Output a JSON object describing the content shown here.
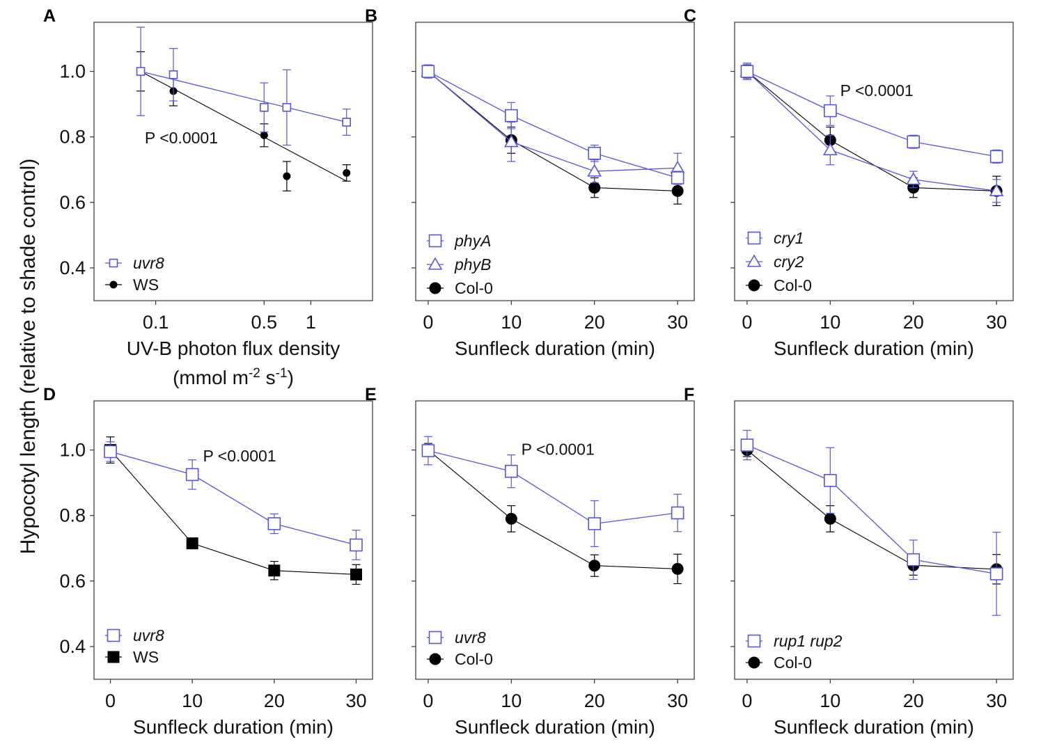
{
  "figure": {
    "y_axis_label": "Hypocotyl length (relative to shade control)"
  },
  "colors": {
    "mutant": "#5555dd",
    "wildtype": "#000000",
    "frame": "#333333"
  },
  "chart_data": [
    {
      "id": "A",
      "letter": "A",
      "type": "line",
      "x_scale": "log",
      "xlim": [
        0.04,
        2.5
      ],
      "ylim": [
        0.3,
        1.15
      ],
      "x_ticks": [
        0.1,
        0.5,
        1
      ],
      "x_tick_labels": [
        "0.1",
        "0.5",
        "1"
      ],
      "y_ticks": [
        0.4,
        0.6,
        0.8,
        1.0
      ],
      "y_tick_labels": [
        "0.4",
        "0.6",
        "0.8",
        "1.0"
      ],
      "show_y_tick_labels": true,
      "xlabel": "UV-B photon flux density",
      "xlabel2": "(mmol m",
      "xlabel2_sup1": "-2",
      "xlabel2_mid": " s",
      "xlabel2_sup2": "-1",
      "xlabel2_end": ")",
      "annotation": {
        "text": "P <0.0001",
        "x": 0.085,
        "y": 0.78
      },
      "series": [
        {
          "name": "uvr8",
          "italic": true,
          "marker": "square",
          "marker_size": "small",
          "color": "#5555dd",
          "points": [
            {
              "x": 0.08,
              "y": 1.0,
              "err": 0.135
            },
            {
              "x": 0.13,
              "y": 0.99,
              "err": 0.08
            },
            {
              "x": 0.5,
              "y": 0.89,
              "err": 0.075
            },
            {
              "x": 0.7,
              "y": 0.89,
              "err": 0.115
            },
            {
              "x": 1.7,
              "y": 0.845,
              "err": 0.04
            }
          ],
          "fit": [
            [
              0.08,
              1.0
            ],
            [
              1.7,
              0.845
            ]
          ]
        },
        {
          "name": "WS",
          "italic": false,
          "marker": "circle",
          "marker_size": "small",
          "color": "#000000",
          "points": [
            {
              "x": 0.08,
              "y": 1.0,
              "err": 0.06
            },
            {
              "x": 0.13,
              "y": 0.94,
              "err": 0.045
            },
            {
              "x": 0.5,
              "y": 0.805,
              "err": 0.035
            },
            {
              "x": 0.7,
              "y": 0.68,
              "err": 0.045
            },
            {
              "x": 1.7,
              "y": 0.69,
              "err": 0.025
            }
          ],
          "fit": [
            [
              0.08,
              1.0
            ],
            [
              1.7,
              0.665
            ]
          ]
        }
      ],
      "legend_top": 378
    },
    {
      "id": "B",
      "letter": "B",
      "type": "line",
      "x_scale": "linear",
      "xlim": [
        -1.5,
        32
      ],
      "ylim": [
        0.3,
        1.15
      ],
      "x_ticks": [
        0,
        10,
        20,
        30
      ],
      "x_tick_labels": [
        "0",
        "10",
        "20",
        "30"
      ],
      "y_ticks": [
        0.4,
        0.6,
        0.8,
        1.0
      ],
      "y_tick_labels": [
        "0.4",
        "0.6",
        "0.8",
        "1.0"
      ],
      "show_y_tick_labels": false,
      "xlabel": "Sunfleck duration (min)",
      "series": [
        {
          "name": "phyA",
          "italic": true,
          "marker": "square",
          "marker_size": "large",
          "color": "#5555dd",
          "points": [
            {
              "x": 0,
              "y": 1.0,
              "err": 0.02
            },
            {
              "x": 10,
              "y": 0.865,
              "err": 0.04
            },
            {
              "x": 20,
              "y": 0.75,
              "err": 0.025
            },
            {
              "x": 30,
              "y": 0.675,
              "err": 0.02
            }
          ]
        },
        {
          "name": "phyB",
          "italic": true,
          "marker": "triangle",
          "marker_size": "large",
          "color": "#5555dd",
          "points": [
            {
              "x": 0,
              "y": 1.0,
              "err": 0.02
            },
            {
              "x": 10,
              "y": 0.785,
              "err": 0.06
            },
            {
              "x": 20,
              "y": 0.695,
              "err": 0.035
            },
            {
              "x": 30,
              "y": 0.705,
              "err": 0.045
            }
          ]
        },
        {
          "name": "Col-0",
          "italic": false,
          "marker": "circle",
          "marker_size": "large",
          "color": "#000000",
          "points": [
            {
              "x": 0,
              "y": 1.0,
              "err": 0.02
            },
            {
              "x": 10,
              "y": 0.79,
              "err": 0.04
            },
            {
              "x": 20,
              "y": 0.645,
              "err": 0.03
            },
            {
              "x": 30,
              "y": 0.635,
              "err": 0.04
            }
          ]
        }
      ],
      "legend_top": 346
    },
    {
      "id": "C",
      "letter": "C",
      "type": "line",
      "x_scale": "linear",
      "xlim": [
        -1.5,
        32
      ],
      "ylim": [
        0.3,
        1.15
      ],
      "x_ticks": [
        0,
        10,
        20,
        30
      ],
      "x_tick_labels": [
        "0",
        "10",
        "20",
        "30"
      ],
      "y_ticks": [
        0.4,
        0.6,
        0.8,
        1.0
      ],
      "y_tick_labels": [
        "0.4",
        "0.6",
        "0.8",
        "1.0"
      ],
      "show_y_tick_labels": false,
      "xlabel": "Sunfleck duration (min)",
      "annotation": {
        "text": "P <0.0001",
        "x": 11.2,
        "y": 0.925
      },
      "series": [
        {
          "name": "cry1",
          "italic": true,
          "marker": "square",
          "marker_size": "large",
          "color": "#5555dd",
          "points": [
            {
              "x": 0,
              "y": 1.0,
              "err": 0.025
            },
            {
              "x": 10,
              "y": 0.88,
              "err": 0.045
            },
            {
              "x": 20,
              "y": 0.785,
              "err": 0.02
            },
            {
              "x": 30,
              "y": 0.74,
              "err": 0.02
            }
          ]
        },
        {
          "name": "cry2",
          "italic": true,
          "marker": "triangle",
          "marker_size": "large",
          "color": "#5555dd",
          "points": [
            {
              "x": 0,
              "y": 1.0,
              "err": 0.025
            },
            {
              "x": 10,
              "y": 0.76,
              "err": 0.045
            },
            {
              "x": 20,
              "y": 0.67,
              "err": 0.025
            },
            {
              "x": 30,
              "y": 0.635,
              "err": 0.035
            }
          ]
        },
        {
          "name": "Col-0",
          "italic": false,
          "marker": "circle",
          "marker_size": "large",
          "color": "#000000",
          "points": [
            {
              "x": 0,
              "y": 1.0,
              "err": 0.02
            },
            {
              "x": 10,
              "y": 0.79,
              "err": 0.04
            },
            {
              "x": 20,
              "y": 0.645,
              "err": 0.03
            },
            {
              "x": 30,
              "y": 0.635,
              "err": 0.045
            }
          ]
        }
      ],
      "legend_top": 342
    },
    {
      "id": "D",
      "letter": "D",
      "type": "line",
      "x_scale": "linear",
      "xlim": [
        -2,
        32
      ],
      "ylim": [
        0.3,
        1.15
      ],
      "x_ticks": [
        0,
        10,
        20,
        30
      ],
      "x_tick_labels": [
        "0",
        "10",
        "20",
        "30"
      ],
      "y_ticks": [
        0.4,
        0.6,
        0.8,
        1.0
      ],
      "y_tick_labels": [
        "0.4",
        "0.6",
        "0.8",
        "1.0"
      ],
      "show_y_tick_labels": true,
      "xlabel": "Sunfleck duration (min)",
      "annotation": {
        "text": "P <0.0001",
        "x": 11.3,
        "y": 0.965
      },
      "series": [
        {
          "name": "uvr8",
          "italic": true,
          "marker": "square",
          "marker_size": "large",
          "color": "#5555dd",
          "points": [
            {
              "x": 0,
              "y": 0.995,
              "err": 0.03
            },
            {
              "x": 10,
              "y": 0.925,
              "err": 0.045
            },
            {
              "x": 20,
              "y": 0.775,
              "err": 0.03
            },
            {
              "x": 30,
              "y": 0.71,
              "err": 0.045
            }
          ]
        },
        {
          "name": "WS",
          "italic": false,
          "marker": "filled-square",
          "marker_size": "large",
          "color": "#000000",
          "points": [
            {
              "x": 0,
              "y": 1.0,
              "err": 0.04
            },
            {
              "x": 10,
              "y": 0.715,
              "err": 0.01
            },
            {
              "x": 20,
              "y": 0.632,
              "err": 0.028
            },
            {
              "x": 30,
              "y": 0.62,
              "err": 0.03
            }
          ]
        }
      ],
      "legend_top": 913
    },
    {
      "id": "E",
      "letter": "E",
      "type": "line",
      "x_scale": "linear",
      "xlim": [
        -1.5,
        32
      ],
      "ylim": [
        0.3,
        1.15
      ],
      "x_ticks": [
        0,
        10,
        20,
        30
      ],
      "x_tick_labels": [
        "0",
        "10",
        "20",
        "30"
      ],
      "y_ticks": [
        0.4,
        0.6,
        0.8,
        1.0
      ],
      "y_tick_labels": [
        "0.4",
        "0.6",
        "0.8",
        "1.0"
      ],
      "show_y_tick_labels": false,
      "xlabel": "Sunfleck duration (min)",
      "annotation": {
        "text": "P <0.0001",
        "x": 11.2,
        "y": 0.985
      },
      "series": [
        {
          "name": "uvr8",
          "italic": true,
          "marker": "square",
          "marker_size": "large",
          "color": "#5555dd",
          "points": [
            {
              "x": 0,
              "y": 0.998,
              "err": 0.043
            },
            {
              "x": 10,
              "y": 0.935,
              "err": 0.05
            },
            {
              "x": 20,
              "y": 0.775,
              "err": 0.07
            },
            {
              "x": 30,
              "y": 0.808,
              "err": 0.057
            }
          ]
        },
        {
          "name": "Col-0",
          "italic": false,
          "marker": "circle",
          "marker_size": "large",
          "color": "#000000",
          "points": [
            {
              "x": 0,
              "y": 1.0,
              "err": 0.02
            },
            {
              "x": 10,
              "y": 0.79,
              "err": 0.04
            },
            {
              "x": 20,
              "y": 0.647,
              "err": 0.033
            },
            {
              "x": 30,
              "y": 0.637,
              "err": 0.045
            }
          ]
        }
      ],
      "legend_top": 916
    },
    {
      "id": "F",
      "letter": "F",
      "type": "line",
      "x_scale": "linear",
      "xlim": [
        -1.5,
        32
      ],
      "ylim": [
        0.3,
        1.15
      ],
      "x_ticks": [
        0,
        10,
        20,
        30
      ],
      "x_tick_labels": [
        "0",
        "10",
        "20",
        "30"
      ],
      "y_ticks": [
        0.4,
        0.6,
        0.8,
        1.0
      ],
      "y_tick_labels": [
        "0.4",
        "0.6",
        "0.8",
        "1.0"
      ],
      "show_y_tick_labels": false,
      "xlabel": "Sunfleck duration (min)",
      "series": [
        {
          "name": "rup1 rup2",
          "italic": true,
          "marker": "square",
          "marker_size": "large",
          "color": "#5555dd",
          "points": [
            {
              "x": 0,
              "y": 1.015,
              "err": 0.045
            },
            {
              "x": 10,
              "y": 0.907,
              "err": 0.1
            },
            {
              "x": 20,
              "y": 0.665,
              "err": 0.06
            },
            {
              "x": 30,
              "y": 0.622,
              "err": 0.127
            }
          ]
        },
        {
          "name": "Col-0",
          "italic": false,
          "marker": "circle",
          "marker_size": "large",
          "color": "#000000",
          "points": [
            {
              "x": 0,
              "y": 1.0,
              "err": 0.02
            },
            {
              "x": 10,
              "y": 0.79,
              "err": 0.04
            },
            {
              "x": 20,
              "y": 0.648,
              "err": 0.03
            },
            {
              "x": 30,
              "y": 0.636,
              "err": 0.045
            }
          ]
        }
      ],
      "legend_top": 921
    }
  ]
}
